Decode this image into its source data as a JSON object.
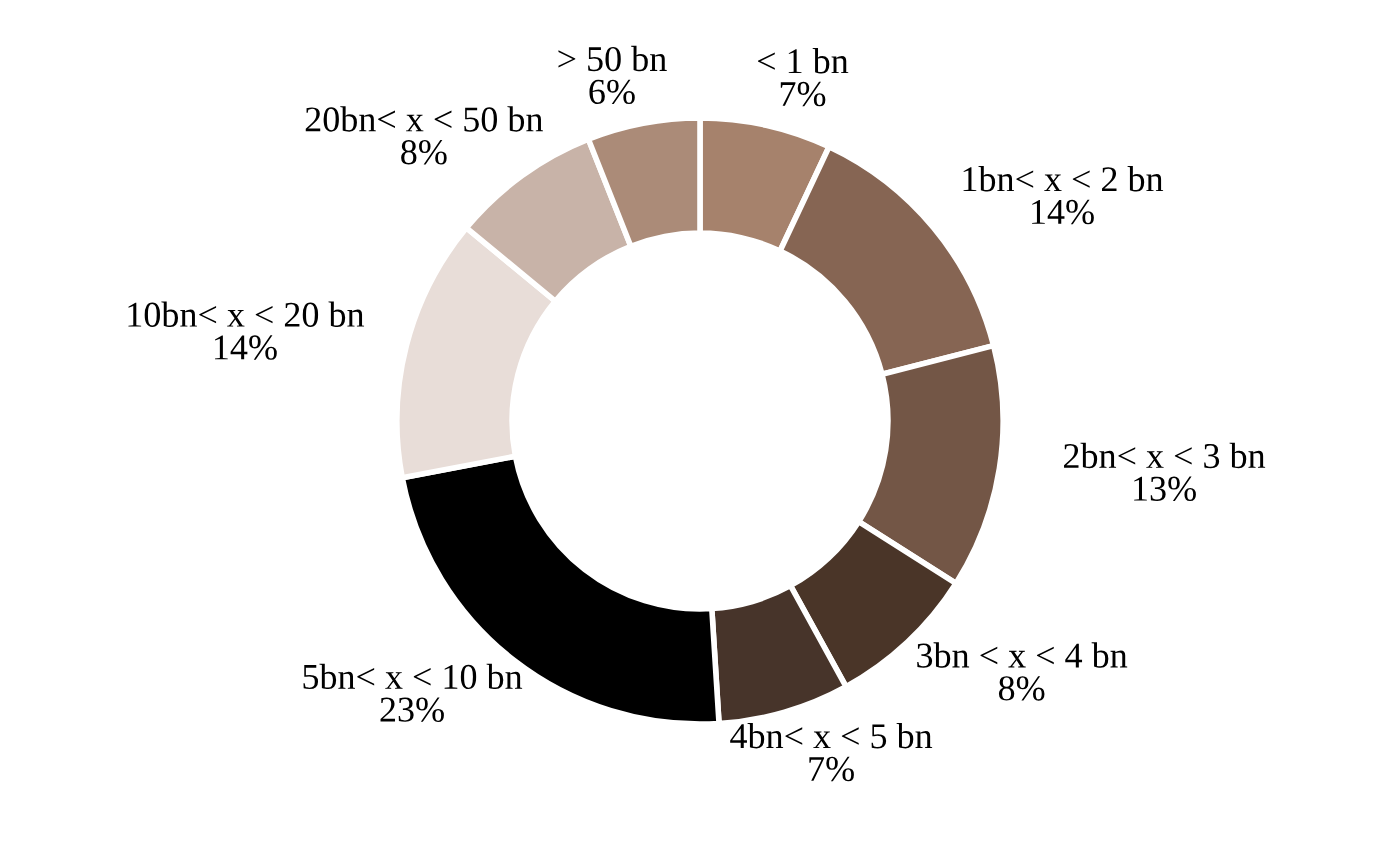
{
  "chart_data": {
    "type": "donut",
    "categories": [
      "< 1 bn",
      "1bn< x < 2 bn",
      "2bn< x < 3 bn",
      "3bn < x < 4 bn",
      "4bn< x < 5 bn",
      "5bn< x < 10 bn",
      "10bn< x < 20 bn",
      "20bn< x < 50 bn",
      "> 50 bn"
    ],
    "values": [
      7,
      14,
      13,
      8,
      7,
      23,
      14,
      8,
      6
    ],
    "value_labels": [
      "7%",
      "14%",
      "13%",
      "8%",
      "7%",
      "23%",
      "14%",
      "8%",
      "6%"
    ],
    "colors": [
      "#a6826c",
      "#866553",
      "#735646",
      "#4a3528",
      "#47342a",
      "#000000",
      "#e8ddd8",
      "#c8b3a8",
      "#ab8b78"
    ]
  }
}
